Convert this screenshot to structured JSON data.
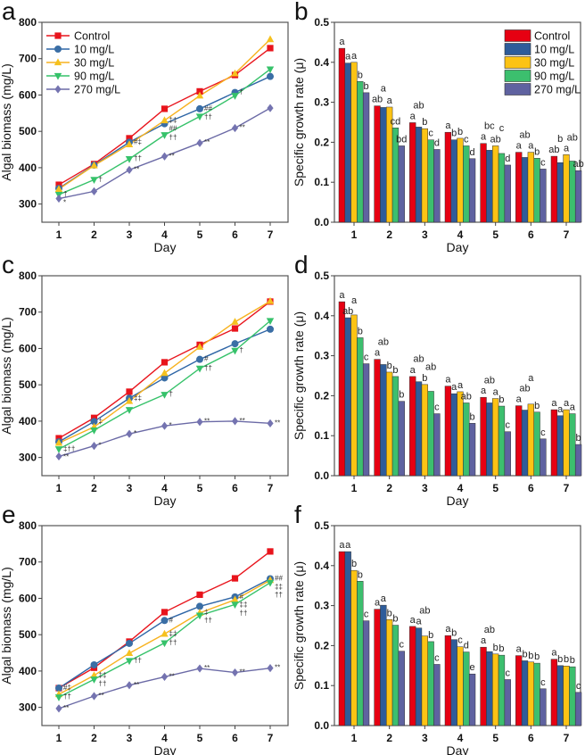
{
  "series_names": [
    "Control",
    "10 mg/L",
    "30 mg/L",
    "90 mg/L",
    "270 mg/L"
  ],
  "colors": {
    "line": [
      "#e8141c",
      "#2f66a6",
      "#f7b21f",
      "#36c26a",
      "#6b6aa6"
    ],
    "marker": [
      "#e8141c",
      "#3a6ea5",
      "#f5c11e",
      "#36c26a",
      "#7473b0"
    ],
    "bar": [
      "#e60012",
      "#2e5c9a",
      "#fcc314",
      "#3cbf6e",
      "#5f62a0"
    ]
  },
  "chart_data": [
    {
      "panel": "a",
      "type": "line",
      "xlabel": "Day",
      "ylabel": "Algal biomass (mg/L)",
      "x": [
        1,
        2,
        3,
        4,
        5,
        6,
        7
      ],
      "ylim": [
        250,
        800
      ],
      "yticks": [
        300,
        400,
        500,
        600,
        700,
        800
      ],
      "legend": "top-left",
      "series": [
        {
          "name": "Control",
          "values": [
            353,
            410,
            481,
            562,
            610,
            655,
            729
          ]
        },
        {
          "name": "10 mg/L",
          "values": [
            343,
            407,
            470,
            521,
            562,
            607,
            651
          ]
        },
        {
          "name": "30 mg/L",
          "values": [
            341,
            406,
            464,
            530,
            598,
            659,
            753
          ]
        },
        {
          "name": "90 mg/L",
          "values": [
            326,
            367,
            424,
            490,
            541,
            598,
            671
          ]
        },
        {
          "name": "270 mg/L",
          "values": [
            315,
            335,
            394,
            431,
            468,
            509,
            564
          ]
        }
      ],
      "annotations": [
        {
          "series": 3,
          "day": 1,
          "text": "†"
        },
        {
          "series": 4,
          "day": 1,
          "text": "*"
        },
        {
          "series": 3,
          "day": 2,
          "text": "†"
        },
        {
          "series": 1,
          "day": 3,
          "text": "#‡"
        },
        {
          "series": 3,
          "day": 3,
          "text": "††"
        },
        {
          "series": 4,
          "day": 3,
          "text": "**"
        },
        {
          "series": 2,
          "day": 4,
          "text": "‡‡"
        },
        {
          "series": 1,
          "day": 4,
          "text": "##"
        },
        {
          "series": 3,
          "day": 4,
          "text": "††"
        },
        {
          "series": 4,
          "day": 4,
          "text": "**"
        },
        {
          "series": 1,
          "day": 5,
          "text": "##"
        },
        {
          "series": 3,
          "day": 5,
          "text": "††"
        },
        {
          "series": 4,
          "day": 5,
          "text": "**"
        },
        {
          "series": 1,
          "day": 6,
          "text": "†"
        },
        {
          "series": 4,
          "day": 6,
          "text": "**"
        }
      ]
    },
    {
      "panel": "b",
      "type": "bar",
      "xlabel": "Day",
      "ylabel": "Specific growth rate (μ)",
      "categories": [
        "1",
        "2",
        "3",
        "4",
        "5",
        "6",
        "7"
      ],
      "ylim": [
        0,
        0.5
      ],
      "yticks": [
        0.0,
        0.1,
        0.2,
        0.3,
        0.4,
        0.5
      ],
      "legend": "top-right",
      "series": [
        {
          "name": "Control",
          "values": [
            0.435,
            0.291,
            0.249,
            0.225,
            0.197,
            0.175,
            0.165
          ]
        },
        {
          "name": "10 mg/L",
          "values": [
            0.398,
            0.287,
            0.238,
            0.206,
            0.18,
            0.162,
            0.149
          ]
        },
        {
          "name": "30 mg/L",
          "values": [
            0.4,
            0.288,
            0.234,
            0.21,
            0.191,
            0.175,
            0.169
          ]
        },
        {
          "name": "90 mg/L",
          "values": [
            0.352,
            0.236,
            0.206,
            0.191,
            0.172,
            0.16,
            0.153
          ]
        },
        {
          "name": "270 mg/L",
          "values": [
            0.324,
            0.191,
            0.182,
            0.159,
            0.143,
            0.133,
            0.129
          ]
        }
      ],
      "letters": [
        [
          "a",
          "a",
          "a",
          "b",
          "b"
        ],
        [
          "ab",
          "a",
          "a",
          "cd",
          "bd"
        ],
        [
          "a",
          "ab",
          "b",
          "c",
          "d"
        ],
        [
          "a",
          "b",
          "b",
          "c",
          "d"
        ],
        [
          "a",
          "bc",
          "ab",
          "c",
          "d"
        ],
        [
          "a",
          "ab",
          "a",
          "b",
          "c"
        ],
        [
          "ab",
          "b",
          "a",
          "ab",
          "ab"
        ]
      ]
    },
    {
      "panel": "c",
      "type": "line",
      "xlabel": "Day",
      "ylabel": "Algal biomass (mg/L)",
      "x": [
        1,
        2,
        3,
        4,
        5,
        6,
        7
      ],
      "ylim": [
        250,
        800
      ],
      "yticks": [
        300,
        400,
        500,
        600,
        700,
        800
      ],
      "series": [
        {
          "name": "Control",
          "values": [
            353,
            409,
            481,
            562,
            610,
            655,
            729
          ]
        },
        {
          "name": "10 mg/L",
          "values": [
            343,
            399,
            463,
            519,
            570,
            613,
            653
          ]
        },
        {
          "name": "30 mg/L",
          "values": [
            340,
            384,
            455,
            532,
            604,
            673,
            730
          ]
        },
        {
          "name": "90 mg/L",
          "values": [
            323,
            375,
            431,
            473,
            545,
            594,
            676
          ]
        },
        {
          "name": "270 mg/L",
          "values": [
            303,
            332,
            365,
            387,
            398,
            400,
            394
          ]
        }
      ],
      "annotations": [
        {
          "series": 3,
          "day": 1,
          "text": "‡††"
        },
        {
          "series": 4,
          "day": 1,
          "text": "**"
        },
        {
          "series": 1,
          "day": 2,
          "text": "‡"
        },
        {
          "series": 4,
          "day": 2,
          "text": "*"
        },
        {
          "series": 1,
          "day": 3,
          "text": "‡‡"
        },
        {
          "series": 4,
          "day": 3,
          "text": "*"
        },
        {
          "series": 3,
          "day": 4,
          "text": "†"
        },
        {
          "series": 4,
          "day": 4,
          "text": "*"
        },
        {
          "series": 1,
          "day": 5,
          "text": "#"
        },
        {
          "series": 3,
          "day": 5,
          "text": "††"
        },
        {
          "series": 4,
          "day": 5,
          "text": "**"
        },
        {
          "series": 3,
          "day": 6,
          "text": "†"
        },
        {
          "series": 4,
          "day": 6,
          "text": "**"
        },
        {
          "series": 4,
          "day": 7,
          "text": "**"
        }
      ]
    },
    {
      "panel": "d",
      "type": "bar",
      "xlabel": "Day",
      "ylabel": "Specific growth rate (μ)",
      "categories": [
        "1",
        "2",
        "3",
        "4",
        "5",
        "6",
        "7"
      ],
      "ylim": [
        0,
        0.5
      ],
      "yticks": [
        0.0,
        0.1,
        0.2,
        0.3,
        0.4,
        0.5
      ],
      "series": [
        {
          "name": "Control",
          "values": [
            0.435,
            0.291,
            0.248,
            0.224,
            0.196,
            0.175,
            0.165
          ]
        },
        {
          "name": "10 mg/L",
          "values": [
            0.395,
            0.278,
            0.235,
            0.205,
            0.182,
            0.164,
            0.15
          ]
        },
        {
          "name": "30 mg/L",
          "values": [
            0.402,
            0.259,
            0.228,
            0.21,
            0.193,
            0.179,
            0.165
          ]
        },
        {
          "name": "90 mg/L",
          "values": [
            0.345,
            0.248,
            0.211,
            0.182,
            0.174,
            0.159,
            0.155
          ]
        },
        {
          "name": "270 mg/L",
          "values": [
            0.28,
            0.186,
            0.155,
            0.131,
            0.11,
            0.092,
            0.078
          ]
        }
      ],
      "letters": [
        [
          "a",
          "ab",
          "a",
          "b",
          "c"
        ],
        [
          "a",
          "ab",
          "b",
          "b",
          "b"
        ],
        [
          "a",
          "ab",
          "b",
          "ab",
          "c"
        ],
        [
          "a",
          "a",
          "a",
          "ab",
          "b"
        ],
        [
          "a",
          "ab",
          "a",
          "b",
          "c"
        ],
        [
          "a",
          "ab",
          "a",
          "b",
          "c"
        ],
        [
          "a",
          "a",
          "a",
          "a",
          "b"
        ]
      ]
    },
    {
      "panel": "e",
      "type": "line",
      "xlabel": "Day",
      "ylabel": "Algal biomass (mg/L)",
      "x": [
        1,
        2,
        3,
        4,
        5,
        6,
        7
      ],
      "ylim": [
        250,
        800
      ],
      "yticks": [
        300,
        400,
        500,
        600,
        700,
        800
      ],
      "series": [
        {
          "name": "Control",
          "values": [
            353,
            409,
            481,
            562,
            610,
            655,
            729
          ]
        },
        {
          "name": "10 mg/L",
          "values": [
            353,
            417,
            476,
            539,
            578,
            604,
            654
          ]
        },
        {
          "name": "30 mg/L",
          "values": [
            336,
            388,
            449,
            502,
            560,
            596,
            650
          ]
        },
        {
          "name": "90 mg/L",
          "values": [
            328,
            377,
            428,
            477,
            553,
            583,
            643
          ]
        },
        {
          "name": "270 mg/L",
          "values": [
            297,
            331,
            361,
            384,
            407,
            396,
            408
          ]
        }
      ],
      "annotations": [
        {
          "series": 1,
          "day": 1,
          "text": "#‡"
        },
        {
          "series": 3,
          "day": 1,
          "text": "††"
        },
        {
          "series": 4,
          "day": 1,
          "text": "**"
        },
        {
          "series": 2,
          "day": 2,
          "text": "‡‡"
        },
        {
          "series": 3,
          "day": 2,
          "text": "††"
        },
        {
          "series": 4,
          "day": 2,
          "text": "**"
        },
        {
          "series": 3,
          "day": 3,
          "text": "††"
        },
        {
          "series": 4,
          "day": 3,
          "text": "**"
        },
        {
          "series": 1,
          "day": 4,
          "text": "#"
        },
        {
          "series": 2,
          "day": 4,
          "text": "‡‡"
        },
        {
          "series": 3,
          "day": 4,
          "text": "††"
        },
        {
          "series": 4,
          "day": 4,
          "text": "**"
        },
        {
          "series": 2,
          "day": 5,
          "text": "‡"
        },
        {
          "series": 3,
          "day": 5,
          "text": "††"
        },
        {
          "series": 4,
          "day": 5,
          "text": "**"
        },
        {
          "series": 1,
          "day": 6,
          "text": "#"
        },
        {
          "series": 2,
          "day": 6,
          "text": "‡‡"
        },
        {
          "series": 3,
          "day": 6,
          "text": "††"
        },
        {
          "series": 4,
          "day": 6,
          "text": "**"
        },
        {
          "series": 1,
          "day": 7,
          "text": "##"
        },
        {
          "series": 2,
          "day": 7,
          "text": "‡‡"
        },
        {
          "series": 3,
          "day": 7,
          "text": "††"
        },
        {
          "series": 4,
          "day": 7,
          "text": "**"
        }
      ]
    },
    {
      "panel": "f",
      "type": "bar",
      "xlabel": "Day",
      "ylabel": "Specific growth rate (μ)",
      "categories": [
        "1",
        "2",
        "3",
        "4",
        "5",
        "6",
        "7"
      ],
      "ylim": [
        0,
        0.5
      ],
      "yticks": [
        0.0,
        0.1,
        0.2,
        0.3,
        0.4,
        0.5
      ],
      "series": [
        {
          "name": "Control",
          "values": [
            0.435,
            0.291,
            0.248,
            0.225,
            0.196,
            0.175,
            0.166
          ]
        },
        {
          "name": "10 mg/L",
          "values": [
            0.435,
            0.301,
            0.244,
            0.215,
            0.185,
            0.162,
            0.15
          ]
        },
        {
          "name": "30 mg/L",
          "values": [
            0.388,
            0.265,
            0.224,
            0.197,
            0.179,
            0.159,
            0.149
          ]
        },
        {
          "name": "90 mg/L",
          "values": [
            0.361,
            0.251,
            0.21,
            0.184,
            0.176,
            0.156,
            0.147
          ]
        },
        {
          "name": "270 mg/L",
          "values": [
            0.262,
            0.186,
            0.153,
            0.129,
            0.115,
            0.092,
            0.083
          ]
        }
      ],
      "letters": [
        [
          "a",
          "a",
          "b",
          "b",
          "c"
        ],
        [
          "a",
          "a",
          "b",
          "b",
          "c"
        ],
        [
          "a",
          "a",
          "ab",
          "b",
          "c"
        ],
        [
          "a",
          "b",
          "c",
          "d",
          "e"
        ],
        [
          "a",
          "ab",
          "b",
          "b",
          "c"
        ],
        [
          "a",
          "b",
          "b",
          "b",
          "c"
        ],
        [
          "a",
          "b",
          "b",
          "b",
          "c"
        ]
      ]
    }
  ]
}
